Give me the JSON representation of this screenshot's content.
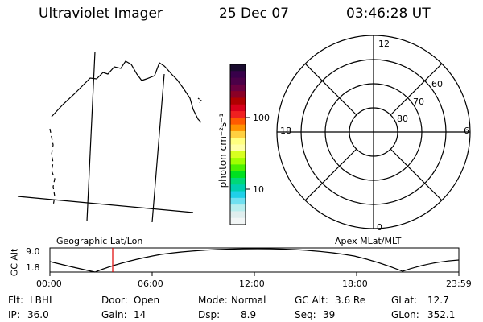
{
  "header": {
    "instrument": "Ultraviolet Imager",
    "date": "25 Dec 07",
    "time": "03:46:28 UT"
  },
  "colorbar": {
    "label": "photon cm⁻²s⁻¹",
    "tick_labels": [
      "100",
      "10"
    ],
    "colors": [
      "#1a0b2e",
      "#38004a",
      "#4b0048",
      "#6a0040",
      "#8a0026",
      "#b00000",
      "#d8001a",
      "#f02020",
      "#ff5a00",
      "#ff9200",
      "#ffd040",
      "#ffff80",
      "#ffffa8",
      "#d8ff20",
      "#a0ff00",
      "#4cf000",
      "#00e020",
      "#00d878",
      "#00cfb0",
      "#20d0e8",
      "#70e0f0",
      "#b8eeee",
      "#dfeeee",
      "#f2f6f6"
    ]
  },
  "polar_plot": {
    "clock_labels": [
      "12",
      "18",
      "6",
      "0"
    ],
    "latitude_labels": [
      "60",
      "70",
      "80"
    ]
  },
  "timeline": {
    "left_label": "Geographic Lat/Lon",
    "right_label": "Apex MLat/MLT",
    "y_axis_label": "GC Alt",
    "y_ticks": [
      "9.0",
      "1.8"
    ],
    "time_ticks": [
      "00:00",
      "06:00",
      "12:00",
      "18:00",
      "23:59"
    ],
    "current_time_marker_color": "#e00000"
  },
  "info": {
    "row1": [
      {
        "label": "Flt:",
        "value": "LBHL"
      },
      {
        "label": "Door:",
        "value": "Open"
      },
      {
        "label": "Mode:",
        "value": "Normal"
      },
      {
        "label": "GC Alt:",
        "value": "3.6 Re"
      },
      {
        "label": "GLat:",
        "value": "12.7"
      }
    ],
    "row2": [
      {
        "label": "IP:",
        "value": "36.0"
      },
      {
        "label": "Gain:",
        "value": "14"
      },
      {
        "label": "Dsp:",
        "value": "8.9"
      },
      {
        "label": "Seq:",
        "value": "39"
      },
      {
        "label": "GLon:",
        "value": "352.1"
      }
    ]
  }
}
